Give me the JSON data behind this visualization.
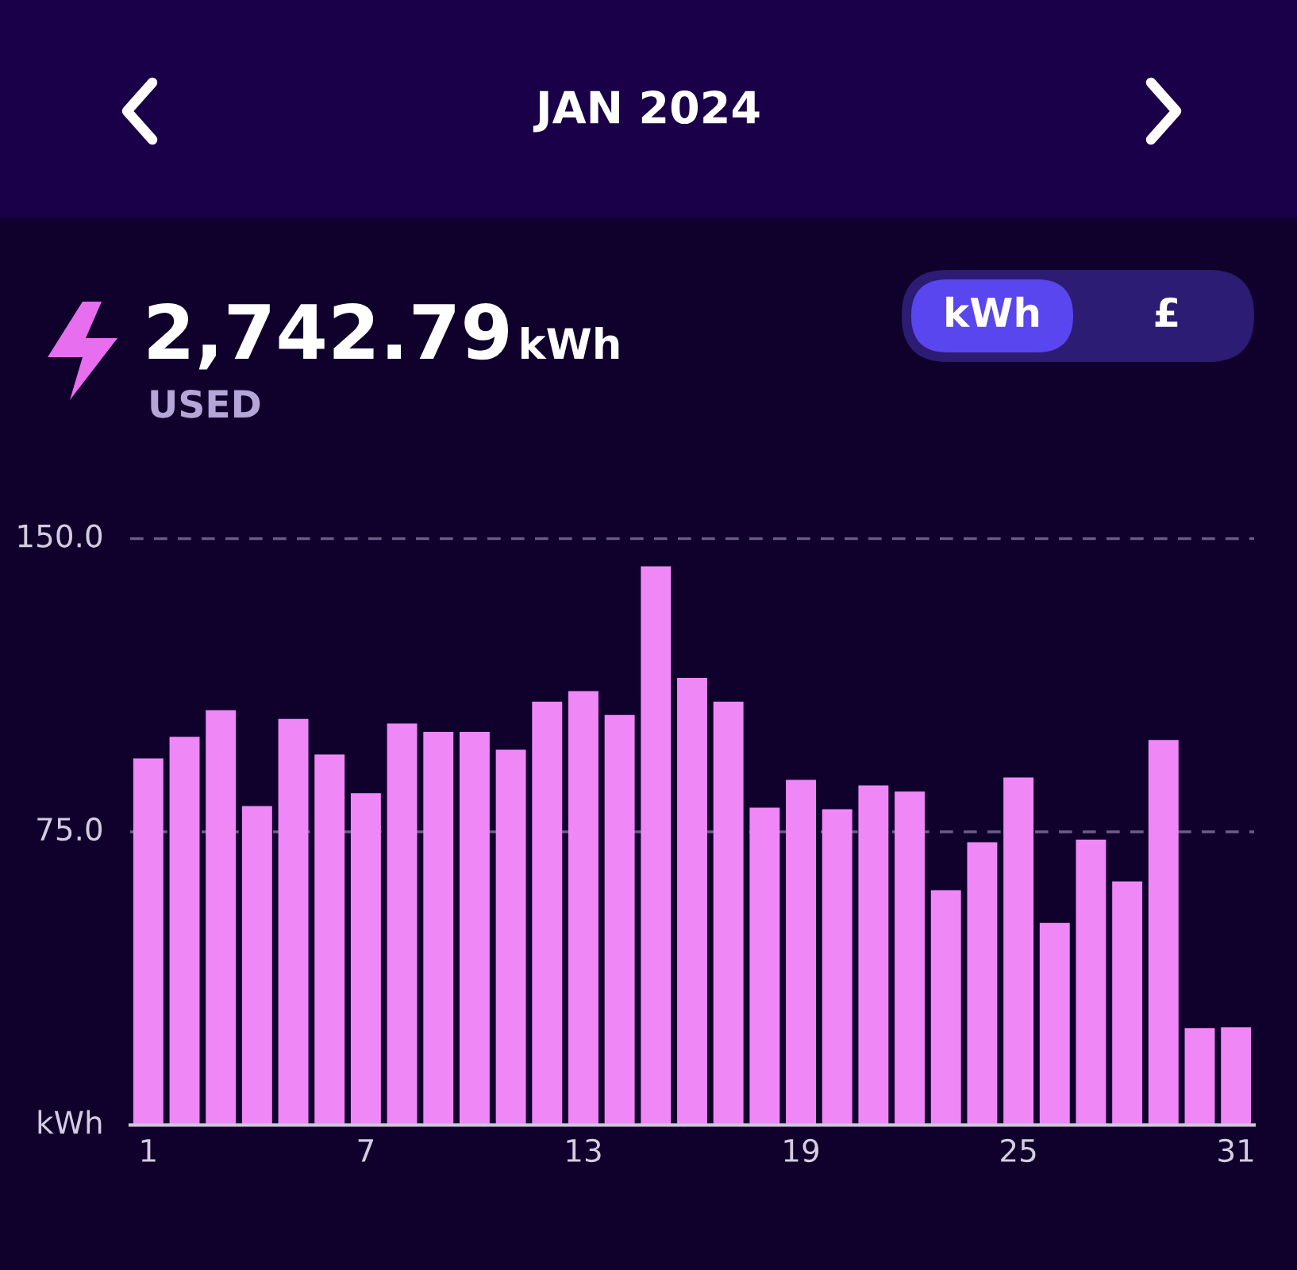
{
  "chart_data": {
    "type": "bar",
    "title": "JAN 2024",
    "subtitle": "2,742.79",
    "annotations": [
      "kWh",
      "USED",
      "kWh",
      "£"
    ],
    "categories": [
      "1",
      null,
      null,
      null,
      null,
      null,
      "7",
      null,
      null,
      null,
      null,
      null,
      "13",
      null,
      null,
      null,
      null,
      null,
      "19",
      null,
      null,
      null,
      null,
      null,
      "25",
      null,
      null,
      null,
      null,
      null,
      "31"
    ],
    "values": [
      93.8,
      99.3,
      106.1,
      81.6,
      103.9,
      94.8,
      84.9,
      102.7,
      100.6,
      100.6,
      96.0,
      108.3,
      111.0,
      104.9,
      142.9,
      114.4,
      108.3,
      81.2,
      88.3,
      80.8,
      86.9,
      85.3,
      60.1,
      72.3,
      88.9,
      51.7,
      73.0,
      62.3,
      98.5,
      24.8,
      25.0
    ],
    "color": "#f087f7",
    "ylim": [
      0,
      150
    ],
    "yticks": [
      {
        "value": 0,
        "label": "kWh"
      },
      {
        "value": 75,
        "label": "75.0"
      },
      {
        "value": 150,
        "label": "150.0"
      }
    ],
    "ref_lines": [
      {
        "axis": "y",
        "value": 75,
        "color": "#6b5d86",
        "line_style": "dashed"
      },
      {
        "axis": "y",
        "value": 150,
        "color": "#6b5d86",
        "line_style": "dashed"
      }
    ]
  }
}
